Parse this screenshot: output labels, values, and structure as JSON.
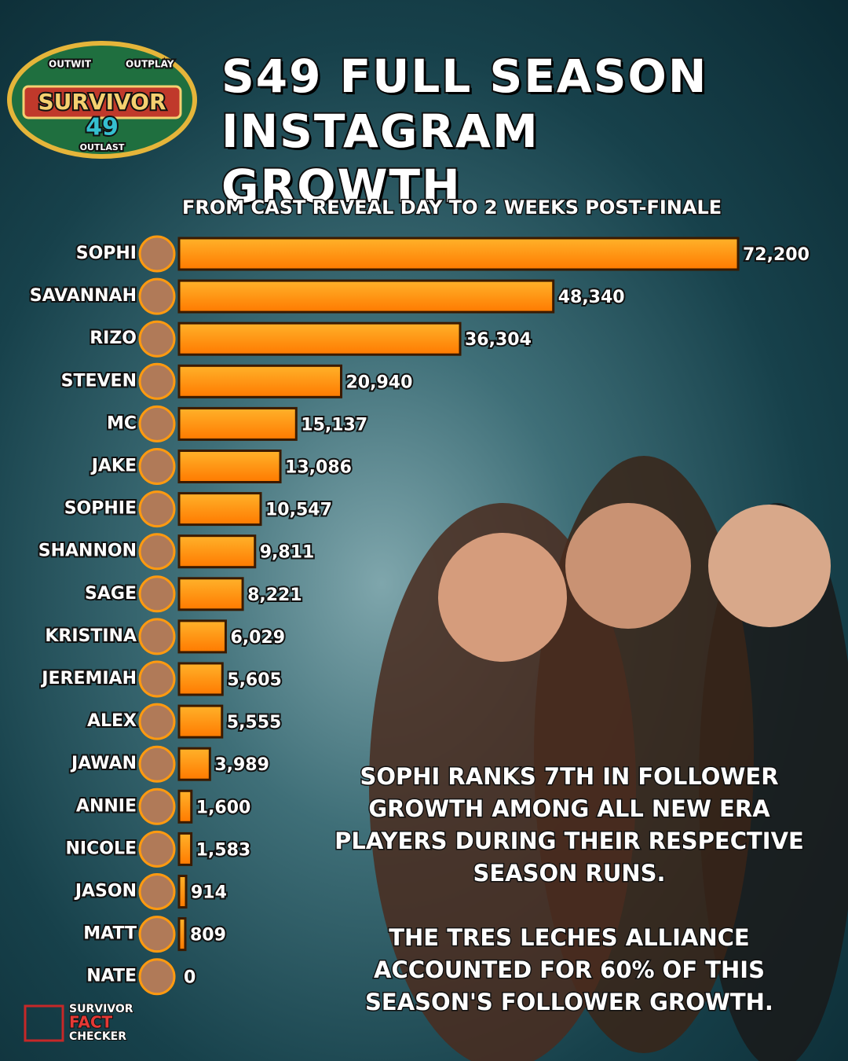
{
  "chart_data": {
    "type": "bar",
    "orientation": "horizontal",
    "title": "S49 FULL SEASON INSTAGRAM GROWTH",
    "subtitle": "FROM CAST REVEAL DAY TO 2 WEEKS POST-FINALE",
    "categories": [
      "SOPHI",
      "SAVANNAH",
      "RIZO",
      "STEVEN",
      "MC",
      "JAKE",
      "SOPHIE",
      "SHANNON",
      "SAGE",
      "KRISTINA",
      "JEREMIAH",
      "ALEX",
      "JAWAN",
      "ANNIE",
      "NICOLE",
      "JASON",
      "MATT",
      "NATE"
    ],
    "values": [
      72200,
      48340,
      36304,
      20940,
      15137,
      13086,
      10547,
      9811,
      8221,
      6029,
      5605,
      5555,
      3989,
      1600,
      1583,
      914,
      809,
      0
    ],
    "value_labels": [
      "72,200",
      "48,340",
      "36,304",
      "20,940",
      "15,137",
      "13,086",
      "10,547",
      "9,811",
      "8,221",
      "6,029",
      "5,605",
      "5,555",
      "3,989",
      "1,600",
      "1,583",
      "914",
      "809",
      "0"
    ],
    "color": "#ff9a10",
    "annotations": [
      "SOPHI RANKS 7TH IN FOLLOWER GROWTH AMONG ALL NEW ERA PLAYERS DURING THEIR RESPECTIVE SEASON RUNS.",
      "THE TRES LECHES ALLIANCE ACCOUNTED FOR 60% OF THIS SEASON'S FOLLOWER GROWTH."
    ]
  },
  "logo": {
    "top_left": "OUTWIT",
    "top_right": "OUTPLAY",
    "name": "SURVIVOR",
    "number": "49",
    "bottom": "OUTLAST"
  },
  "watermark": {
    "line1": "SURVIVOR",
    "line2": "FACT",
    "line3": "CHECKER"
  }
}
